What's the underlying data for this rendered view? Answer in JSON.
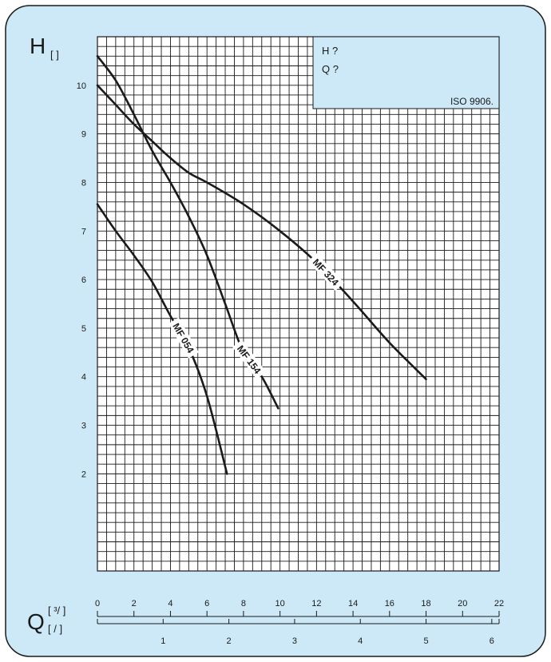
{
  "colors": {
    "panel": "#cde9f7",
    "legend_box": "#cde9f7",
    "grid": "#1a1a1a",
    "curve": "#1a1a1a"
  },
  "axes": {
    "y_symbol": "H",
    "y_unit": "[ ]",
    "x_symbol": "Q",
    "x_unit_top": "[ ³/ ]",
    "x_unit_bottom": "[ / ]"
  },
  "legend": {
    "line1": "H ?",
    "line2": "Q ?",
    "standard": "ISO 9906."
  },
  "chart_data": {
    "type": "line",
    "title": "",
    "xlabel": "Q",
    "ylabel": "H",
    "xlim": [
      0,
      22
    ],
    "ylim": [
      0,
      11
    ],
    "yticks": [
      2,
      3,
      4,
      5,
      6,
      7,
      8,
      9,
      10
    ],
    "xticks": [
      0,
      2,
      4,
      6,
      8,
      10,
      12,
      14,
      16,
      18,
      20,
      22
    ],
    "secondary_xticks": [
      1,
      2,
      3,
      4,
      5,
      6
    ],
    "secondary_x_factor": 3.6,
    "grid": true,
    "series": [
      {
        "name": "MF 054",
        "x": [
          0,
          1,
          2,
          3,
          4,
          5,
          6,
          7.1
        ],
        "y": [
          7.55,
          7.0,
          6.5,
          5.95,
          5.25,
          4.6,
          3.6,
          2.0
        ]
      },
      {
        "name": "MF 154",
        "x": [
          0,
          1,
          2,
          3,
          4,
          5,
          6,
          7,
          8,
          9,
          9.9
        ],
        "y": [
          10.6,
          10.1,
          9.4,
          8.65,
          8.0,
          7.3,
          6.5,
          5.5,
          4.5,
          4.0,
          3.35
        ]
      },
      {
        "name": "MF 324",
        "x": [
          0,
          1,
          2,
          3,
          4,
          5,
          6,
          8,
          10,
          12,
          14,
          16,
          18
        ],
        "y": [
          10.0,
          9.6,
          9.2,
          8.85,
          8.5,
          8.2,
          8.0,
          7.55,
          7.0,
          6.35,
          5.55,
          4.7,
          3.95
        ]
      }
    ]
  }
}
